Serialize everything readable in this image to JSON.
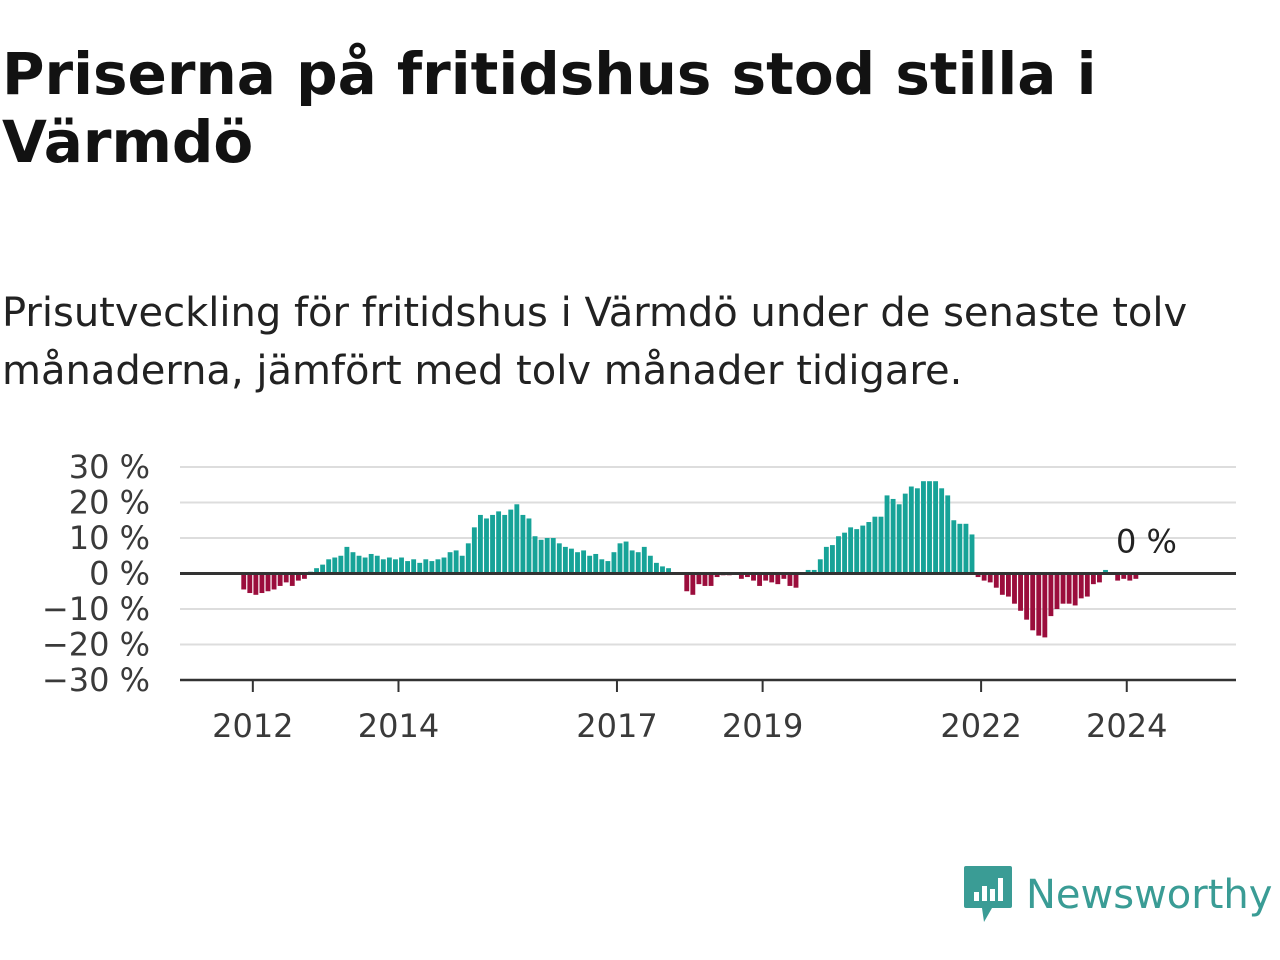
{
  "title": "Priserna på fritidshus stod stilla i Värmdö",
  "subtitle": "Prisutveckling för fritidshus i Värmdö under de senaste tolv månaderna, jämfört med tolv månader tidigare.",
  "brand": {
    "name": "Newsworthy",
    "icon": "newsworthy-logo-icon",
    "color": "#3a9c95"
  },
  "chart_data": {
    "type": "bar",
    "title": "",
    "xlabel": "",
    "ylabel": "",
    "ylim": [
      -30,
      30
    ],
    "yticks": [
      30,
      20,
      10,
      0,
      -10,
      -20,
      -30
    ],
    "ytick_labels": [
      "30 %",
      "20 %",
      "10 %",
      "0 %",
      "−10 %",
      "−20 %",
      "−30 %"
    ],
    "grid": true,
    "x_start": "2011-01",
    "x_end": "2025-07",
    "x_ticks": [
      {
        "date": "2012-01",
        "label": "2012"
      },
      {
        "date": "2014-01",
        "label": "2014"
      },
      {
        "date": "2017-01",
        "label": "2017"
      },
      {
        "date": "2019-01",
        "label": "2019"
      },
      {
        "date": "2022-01",
        "label": "2022"
      },
      {
        "date": "2024-01",
        "label": "2024"
      }
    ],
    "positive_color": "#17a398",
    "negative_color": "#9b0d3c",
    "first_month": "2011-11",
    "values": [
      -4.5,
      -5.5,
      -6.0,
      -5.5,
      -5.0,
      -4.5,
      -3.5,
      -2.5,
      -3.5,
      -2.0,
      -1.5,
      0.5,
      1.5,
      2.5,
      4.0,
      4.5,
      5.0,
      7.5,
      6.0,
      5.0,
      4.5,
      5.5,
      5.0,
      4.0,
      4.5,
      4.0,
      4.5,
      3.5,
      4.0,
      3.0,
      4.0,
      3.5,
      4.0,
      4.5,
      6.0,
      6.5,
      5.0,
      8.5,
      13.0,
      16.5,
      15.5,
      16.5,
      17.5,
      16.5,
      18.0,
      19.5,
      16.5,
      15.5,
      10.5,
      9.5,
      10.0,
      10.0,
      8.5,
      7.5,
      7.0,
      6.0,
      6.5,
      5.0,
      5.5,
      4.0,
      3.5,
      6.0,
      8.5,
      9.0,
      6.5,
      6.0,
      7.5,
      5.0,
      3.0,
      2.0,
      1.5,
      0,
      0,
      -5.0,
      -6.0,
      -3.0,
      -3.5,
      -3.5,
      -1.0,
      -0.5,
      -0.5,
      0,
      -1.5,
      -1.0,
      -2.0,
      -3.5,
      -2.0,
      -2.5,
      -3.0,
      -1.5,
      -3.5,
      -4.0,
      0,
      1.0,
      1.0,
      4.0,
      7.5,
      8.0,
      10.5,
      11.5,
      13.0,
      12.5,
      13.5,
      14.5,
      16.0,
      16.0,
      22.0,
      21.0,
      19.5,
      22.5,
      24.5,
      24.0,
      26.0,
      26.0,
      26.0,
      24.0,
      22.0,
      15.0,
      14.0,
      14.0,
      11.0,
      -1.0,
      -2.0,
      -2.5,
      -4.0,
      -6.0,
      -6.5,
      -8.5,
      -10.5,
      -13.0,
      -16.0,
      -17.5,
      -18.0,
      -12.0,
      -10.0,
      -8.5,
      -8.5,
      -9.0,
      -7.0,
      -6.5,
      -3.0,
      -2.5,
      1.0,
      0,
      -2.0,
      -1.5,
      -2.0,
      -1.5,
      0
    ],
    "last_value_label": "0 %"
  }
}
